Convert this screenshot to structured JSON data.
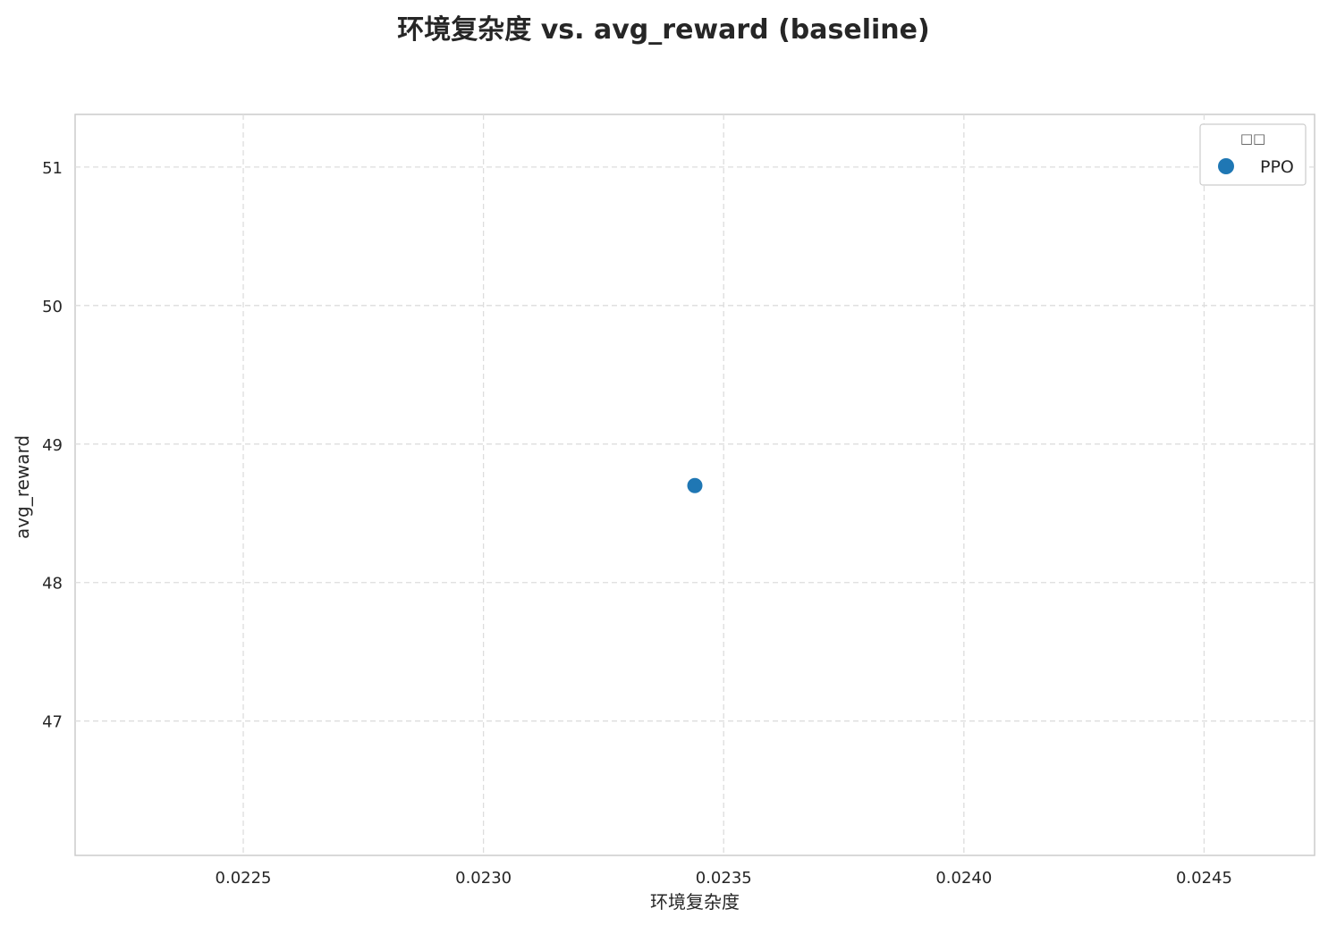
{
  "chart_data": {
    "type": "scatter",
    "title": "环境复杂度 vs. avg_reward (baseline)",
    "xlabel": "环境复杂度",
    "ylabel": "avg_reward",
    "xlim": [
      0.02215,
      0.02473
    ],
    "ylim": [
      46.03,
      51.38
    ],
    "xticks": [
      0.0225,
      0.023,
      0.0235,
      0.024,
      0.0245
    ],
    "xtick_labels": [
      "0.0225",
      "0.0230",
      "0.0235",
      "0.0240",
      "0.0245"
    ],
    "yticks": [
      47,
      48,
      49,
      50,
      51
    ],
    "ytick_labels": [
      "47",
      "48",
      "49",
      "50",
      "51"
    ],
    "grid": true,
    "legend": {
      "title": "□□",
      "placement": "top-right"
    },
    "series": [
      {
        "name": "PPO",
        "color": "#1f77b4",
        "points": [
          {
            "x": 0.02344,
            "y": 48.7
          }
        ]
      }
    ]
  }
}
